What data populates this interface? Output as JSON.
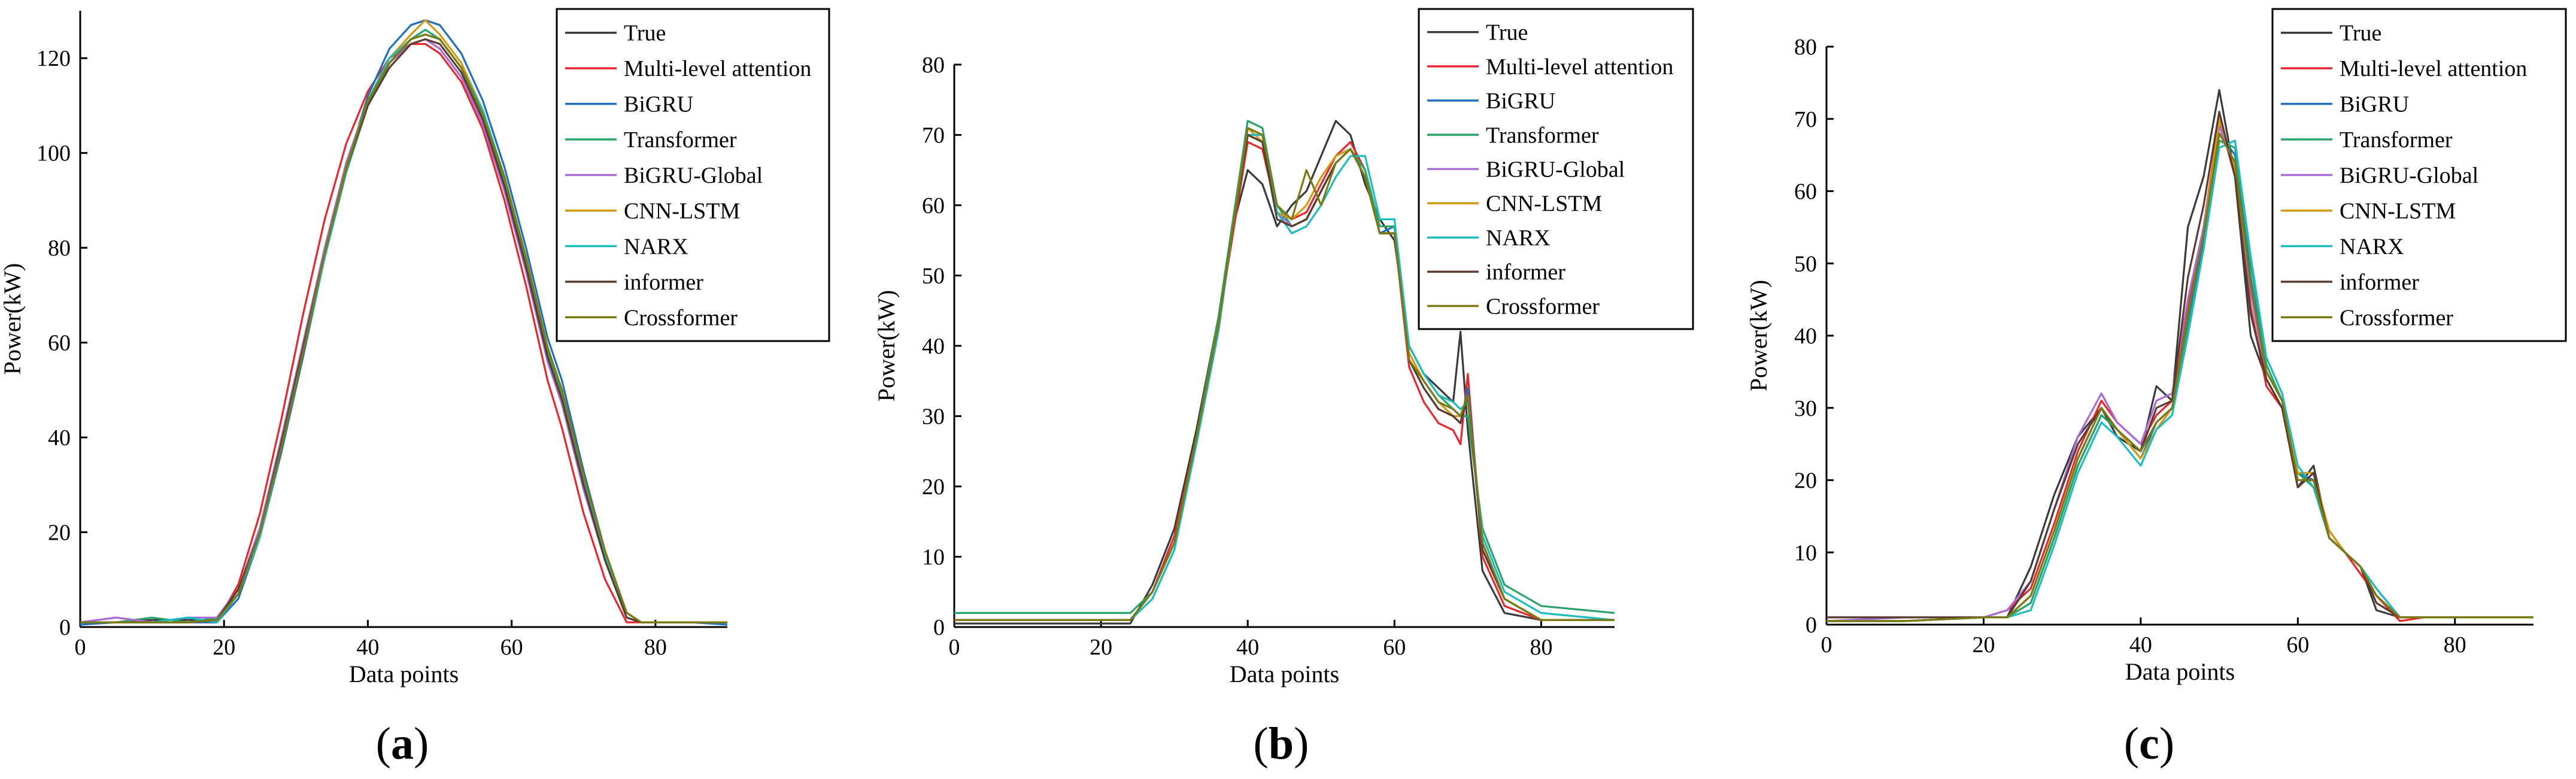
{
  "series_styles": [
    {
      "name": "True",
      "color": "#3a3a3a"
    },
    {
      "name": "Multi-level attention",
      "color": "#e8262c"
    },
    {
      "name": "BiGRU",
      "color": "#1f6fbf"
    },
    {
      "name": "Transformer",
      "color": "#2aa36b"
    },
    {
      "name": "BiGRU-Global",
      "color": "#a86bd8"
    },
    {
      "name": "CNN-LSTM",
      "color": "#d29a12"
    },
    {
      "name": "NARX",
      "color": "#1cbcbf"
    },
    {
      "name": "informer",
      "color": "#5a3b2e"
    },
    {
      "name": "Crossformer",
      "color": "#7a7a10"
    }
  ],
  "chart_data": [
    {
      "type": "line",
      "panel": "(a)",
      "panel_letter": "a",
      "xlabel": "Data points",
      "ylabel": "Power(kW)",
      "xlim": [
        0,
        90
      ],
      "ylim": [
        0,
        130
      ],
      "xticks": [
        0,
        20,
        40,
        60,
        80
      ],
      "yticks": [
        0,
        20,
        40,
        60,
        80,
        100,
        120
      ],
      "legend_position": "top-right",
      "x": [
        0,
        5,
        10,
        15,
        19,
        22,
        25,
        28,
        31,
        34,
        37,
        40,
        43,
        46,
        48,
        50,
        53,
        56,
        59,
        62,
        65,
        67,
        70,
        73,
        76,
        78,
        80,
        85,
        90
      ],
      "series": [
        {
          "name": "True",
          "values": [
            1,
            1,
            1.5,
            1.5,
            1.5,
            8,
            20,
            38,
            58,
            78,
            96,
            110,
            119,
            124,
            125,
            124,
            118,
            108,
            94,
            76,
            57,
            48,
            30,
            15,
            3,
            1,
            1,
            1,
            1
          ]
        },
        {
          "name": "Multi-level attention",
          "values": [
            1,
            2,
            1,
            1,
            1,
            9,
            24,
            44,
            66,
            86,
            102,
            113,
            120,
            123,
            123,
            121,
            115,
            105,
            90,
            72,
            52,
            42,
            24,
            10,
            1,
            1,
            1,
            1,
            1
          ]
        },
        {
          "name": "BiGRU",
          "values": [
            0.5,
            1,
            1,
            1,
            1,
            6,
            19,
            37,
            57,
            78,
            97,
            112,
            122,
            127,
            128,
            127,
            121,
            111,
            97,
            80,
            61,
            52,
            33,
            16,
            3,
            1,
            1,
            1,
            0.5
          ]
        },
        {
          "name": "Transformer",
          "values": [
            1,
            1,
            2,
            1,
            2,
            7,
            20,
            38,
            58,
            78,
            96,
            110,
            119,
            124,
            126,
            124,
            118,
            108,
            94,
            77,
            58,
            49,
            31,
            15,
            3,
            1,
            1,
            1,
            1
          ]
        },
        {
          "name": "BiGRU-Global",
          "values": [
            1,
            2,
            1,
            2,
            2,
            8,
            21,
            40,
            60,
            80,
            98,
            111,
            119,
            123,
            124,
            122,
            116,
            106,
            92,
            75,
            56,
            47,
            29,
            14,
            2,
            1,
            1,
            1,
            1
          ]
        },
        {
          "name": "CNN-LSTM",
          "values": [
            1,
            1,
            1,
            1,
            1.5,
            7,
            20,
            39,
            59,
            79,
            97,
            111,
            120,
            125,
            128,
            125,
            119,
            109,
            95,
            78,
            59,
            50,
            32,
            16,
            3,
            1,
            1,
            1,
            1
          ]
        },
        {
          "name": "NARX",
          "values": [
            1,
            1,
            1,
            2,
            1,
            7,
            19,
            38,
            58,
            78,
            97,
            111,
            120,
            124,
            125,
            124,
            118,
            109,
            95,
            78,
            59,
            50,
            31,
            15,
            3,
            1,
            1,
            1,
            1
          ]
        },
        {
          "name": "informer",
          "values": [
            1,
            1,
            1,
            1,
            1.5,
            8,
            20,
            39,
            59,
            79,
            97,
            110,
            118,
            123,
            124,
            123,
            117,
            107,
            93,
            76,
            57,
            48,
            30,
            14,
            2,
            1,
            1,
            1,
            1
          ]
        },
        {
          "name": "Crossformer",
          "values": [
            1,
            1,
            1,
            1,
            1.5,
            7,
            20,
            38,
            58,
            79,
            97,
            111,
            119,
            124,
            125,
            124,
            118,
            108,
            95,
            78,
            59,
            50,
            32,
            16,
            3,
            1,
            1,
            1,
            1
          ]
        }
      ]
    },
    {
      "type": "line",
      "panel": "(b)",
      "panel_letter": "b",
      "xlabel": "Data points",
      "ylabel": "Power(kW)",
      "xlim": [
        0,
        90
      ],
      "ylim": [
        0,
        80
      ],
      "xticks": [
        0,
        20,
        40,
        60,
        80
      ],
      "yticks": [
        0,
        10,
        20,
        30,
        40,
        50,
        60,
        70,
        80
      ],
      "legend_position": "top-right",
      "x": [
        0,
        10,
        20,
        24,
        27,
        30,
        33,
        36,
        38,
        40,
        42,
        44,
        46,
        48,
        50,
        52,
        54,
        56,
        58,
        60,
        62,
        64,
        66,
        68,
        69,
        70,
        72,
        75,
        80,
        90
      ],
      "series": [
        {
          "name": "True",
          "values": [
            0.5,
            0.5,
            0.5,
            0.5,
            6,
            14,
            28,
            44,
            57,
            65,
            63,
            57,
            60,
            62,
            67,
            72,
            70,
            63,
            58,
            55,
            40,
            36,
            34,
            32,
            42,
            28,
            8,
            2,
            1,
            1
          ]
        },
        {
          "name": "Multi-level attention",
          "values": [
            1,
            1,
            1,
            1,
            5,
            13,
            27,
            43,
            56,
            69,
            68,
            59,
            58,
            59,
            63,
            67,
            69,
            65,
            56,
            56,
            37,
            32,
            29,
            28,
            26,
            36,
            10,
            3,
            1,
            1
          ]
        },
        {
          "name": "BiGRU",
          "values": [
            1,
            1,
            1,
            1,
            4,
            11,
            26,
            42,
            57,
            70,
            70,
            60,
            57,
            58,
            62,
            66,
            68,
            64,
            56,
            57,
            38,
            34,
            31,
            30,
            29,
            34,
            12,
            4,
            1,
            1
          ]
        },
        {
          "name": "Transformer",
          "values": [
            2,
            2,
            2,
            2,
            5,
            12,
            27,
            44,
            58,
            72,
            71,
            60,
            57,
            58,
            62,
            66,
            68,
            65,
            57,
            57,
            40,
            36,
            33,
            31,
            30,
            30,
            14,
            6,
            3,
            2
          ]
        },
        {
          "name": "BiGRU-Global",
          "values": [
            1,
            1,
            1,
            1,
            5,
            12,
            26,
            43,
            57,
            71,
            70,
            59,
            57,
            58,
            62,
            66,
            68,
            64,
            56,
            56,
            38,
            35,
            32,
            30,
            29,
            33,
            12,
            4,
            1,
            1
          ]
        },
        {
          "name": "CNN-LSTM",
          "values": [
            1,
            1,
            1,
            1,
            5,
            12,
            27,
            43,
            57,
            71,
            69,
            59,
            58,
            60,
            64,
            67,
            68,
            64,
            56,
            56,
            39,
            35,
            32,
            30,
            30,
            33,
            11,
            4,
            1,
            1
          ]
        },
        {
          "name": "NARX",
          "values": [
            1,
            1,
            1,
            1,
            4,
            11,
            26,
            42,
            57,
            70,
            70,
            59,
            56,
            57,
            60,
            64,
            67,
            67,
            58,
            58,
            40,
            36,
            33,
            32,
            31,
            32,
            13,
            5,
            2,
            1
          ]
        },
        {
          "name": "informer",
          "values": [
            1,
            1,
            1,
            1,
            5,
            12,
            27,
            43,
            57,
            70,
            69,
            58,
            57,
            58,
            62,
            66,
            68,
            64,
            56,
            56,
            38,
            34,
            31,
            30,
            29,
            33,
            11,
            4,
            1,
            1
          ]
        },
        {
          "name": "Crossformer",
          "values": [
            1,
            1,
            1,
            1,
            5,
            12,
            27,
            43,
            57,
            71,
            70,
            60,
            58,
            65,
            60,
            66,
            68,
            64,
            56,
            56,
            38,
            35,
            32,
            31,
            30,
            33,
            12,
            4,
            1,
            1
          ]
        }
      ]
    },
    {
      "type": "line",
      "panel": "(c)",
      "panel_letter": "c",
      "xlabel": "Data points",
      "ylabel": "Power(kW)",
      "xlim": [
        0,
        90
      ],
      "ylim": [
        0,
        80
      ],
      "xticks": [
        0,
        20,
        40,
        60,
        80
      ],
      "yticks": [
        0,
        10,
        20,
        30,
        40,
        50,
        60,
        70,
        80
      ],
      "legend_position": "top-right",
      "x": [
        0,
        10,
        20,
        23,
        26,
        29,
        32,
        35,
        37,
        40,
        42,
        44,
        46,
        48,
        50,
        52,
        54,
        56,
        58,
        60,
        62,
        64,
        66,
        68,
        70,
        73,
        76,
        80,
        90
      ],
      "series": [
        {
          "name": "True",
          "values": [
            1,
            1,
            1,
            1,
            8,
            18,
            26,
            30,
            26,
            24,
            33,
            31,
            55,
            62,
            74,
            62,
            40,
            34,
            30,
            19,
            22,
            12,
            10,
            8,
            2,
            1,
            1,
            1,
            1
          ]
        },
        {
          "name": "Multi-level attention",
          "values": [
            0.5,
            0.5,
            1,
            2,
            5,
            14,
            24,
            31,
            28,
            25,
            29,
            31,
            44,
            55,
            70,
            62,
            44,
            33,
            30,
            20,
            20,
            13,
            10,
            7,
            4,
            0.5,
            1,
            1,
            1
          ]
        },
        {
          "name": "BiGRU",
          "values": [
            0.5,
            0.5,
            1,
            1,
            3,
            12,
            22,
            29,
            27,
            23,
            28,
            30,
            42,
            53,
            68,
            65,
            48,
            35,
            31,
            21,
            20,
            12,
            10,
            8,
            4,
            1,
            1,
            1,
            1
          ]
        },
        {
          "name": "Transformer",
          "values": [
            0.5,
            0.5,
            1,
            1,
            3,
            12,
            22,
            29,
            27,
            23,
            27,
            29,
            41,
            52,
            67,
            66,
            50,
            36,
            31,
            21,
            19,
            12,
            10,
            8,
            4,
            1,
            1,
            1,
            1
          ]
        },
        {
          "name": "BiGRU-Global",
          "values": [
            0.5,
            1,
            1,
            2,
            6,
            16,
            26,
            32,
            28,
            25,
            31,
            32,
            45,
            55,
            69,
            63,
            46,
            34,
            30,
            20,
            20,
            13,
            10,
            8,
            5,
            1,
            1,
            1,
            1
          ]
        },
        {
          "name": "CNN-LSTM",
          "values": [
            0.5,
            0.5,
            1,
            1,
            4,
            13,
            23,
            30,
            27,
            23,
            27,
            30,
            43,
            54,
            70,
            63,
            47,
            35,
            31,
            21,
            21,
            13,
            10,
            8,
            4,
            1,
            1,
            1,
            1
          ]
        },
        {
          "name": "NARX",
          "values": [
            0.5,
            0.5,
            1,
            1,
            2,
            11,
            21,
            28,
            26,
            22,
            27,
            29,
            40,
            52,
            66,
            67,
            51,
            37,
            32,
            22,
            19,
            12,
            10,
            8,
            5,
            1,
            1,
            1,
            1
          ]
        },
        {
          "name": "informer",
          "values": [
            1,
            1,
            1,
            1,
            6,
            16,
            25,
            30,
            27,
            24,
            30,
            31,
            48,
            58,
            71,
            62,
            43,
            34,
            30,
            19,
            21,
            12,
            10,
            8,
            3,
            1,
            1,
            1,
            1
          ]
        },
        {
          "name": "Crossformer",
          "values": [
            0.5,
            0.5,
            1,
            1,
            4,
            13,
            23,
            30,
            27,
            24,
            28,
            30,
            43,
            54,
            68,
            64,
            47,
            35,
            31,
            20,
            20,
            12,
            10,
            8,
            4,
            1,
            1,
            1,
            1
          ]
        }
      ]
    }
  ]
}
